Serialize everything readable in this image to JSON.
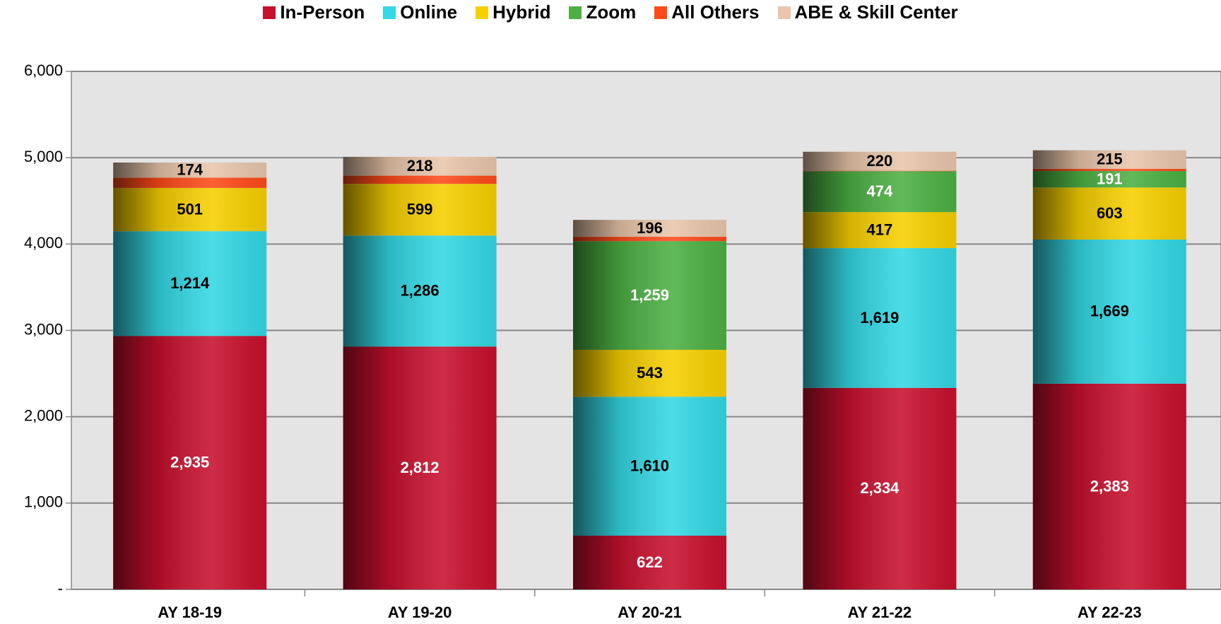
{
  "chart_data": {
    "type": "stacked_bar",
    "categories": [
      "AY 18-19",
      "AY 19-20",
      "AY 20-21",
      "AY 21-22",
      "AY 22-23"
    ],
    "series": [
      {
        "name": "In-Person",
        "color": "#c8102e",
        "label_color": "#ffffff",
        "values": [
          2935,
          2812,
          622,
          2334,
          2383
        ],
        "value_labels": [
          "2,935",
          "2,812",
          "622",
          "2,334",
          "2,383"
        ]
      },
      {
        "name": "Online",
        "color": "#33d8e4",
        "label_color": "#000000",
        "values": [
          1214,
          1286,
          1610,
          1619,
          1669
        ],
        "value_labels": [
          "1,214",
          "1,286",
          "1,610",
          "1,619",
          "1,669"
        ]
      },
      {
        "name": "Hybrid",
        "color": "#f7d000",
        "label_color": "#000000",
        "values": [
          501,
          599,
          543,
          417,
          603
        ],
        "value_labels": [
          "501",
          "599",
          "543",
          "417",
          "603"
        ]
      },
      {
        "name": "Zoom",
        "color": "#4cb043",
        "label_color": "#ffffff",
        "values": [
          null,
          null,
          1259,
          474,
          191
        ],
        "value_labels": [
          null,
          null,
          "1,259",
          "474",
          "191"
        ]
      },
      {
        "name": "All Others",
        "color": "#ff4a1a",
        "values": [
          120,
          95,
          50,
          5,
          25
        ]
      },
      {
        "name": "ABE & Skill Center",
        "color": "#e9c6ab",
        "label_color": "#000000",
        "values": [
          174,
          218,
          196,
          220,
          215
        ],
        "value_labels": [
          "174",
          "218",
          "196",
          "220",
          "215"
        ]
      }
    ],
    "ylim": [
      0,
      6000
    ],
    "yticks": [
      {
        "value": 0,
        "label": "-"
      },
      {
        "value": 1000,
        "label": "1,000"
      },
      {
        "value": 2000,
        "label": "2,000"
      },
      {
        "value": 3000,
        "label": "3,000"
      },
      {
        "value": 4000,
        "label": "4,000"
      },
      {
        "value": 5000,
        "label": "5,000"
      },
      {
        "value": 6000,
        "label": "6,000"
      }
    ],
    "grid": true,
    "legend": "top"
  }
}
